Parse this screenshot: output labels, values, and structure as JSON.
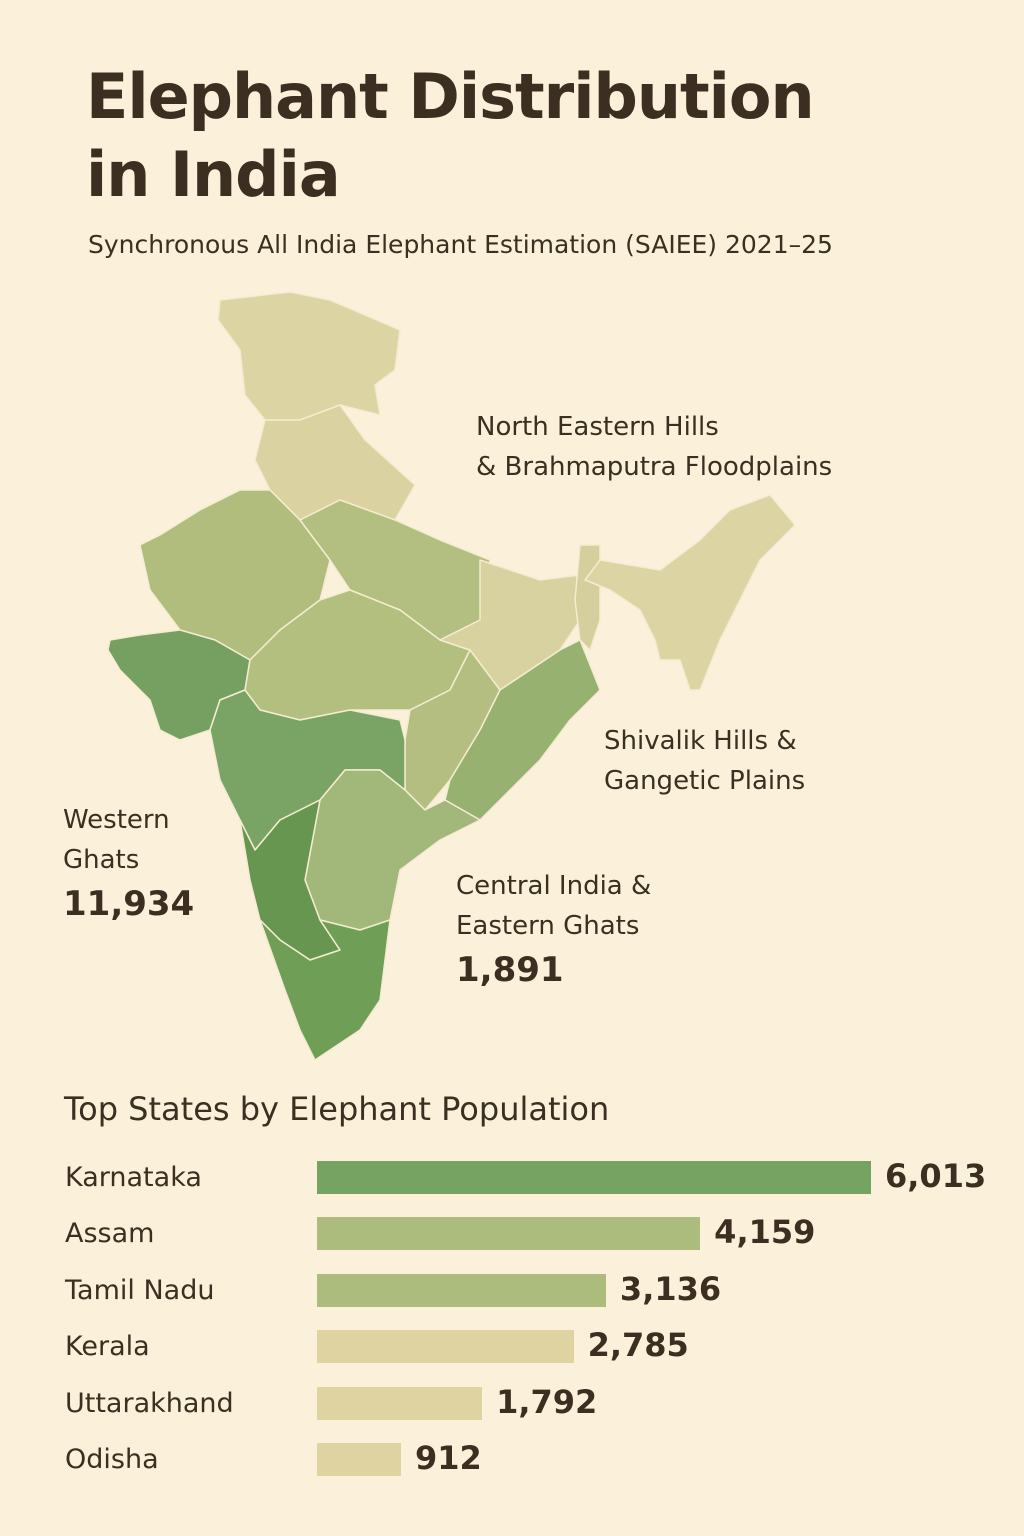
{
  "header": {
    "title_line1": "Elephant Distribution",
    "title_line2": "in India",
    "subtitle": "Synchronous All India Elephant Estimation (SAIEE) 2021–25"
  },
  "map": {
    "regions": [
      {
        "name_line1": "North Eastern Hills",
        "name_line2": "& Brahmaputra Floodplains"
      },
      {
        "name_line1": "Shivalik Hills &",
        "name_line2": "Gangetic Plains"
      },
      {
        "name_line1": "Western",
        "name_line2": "Ghats",
        "count": "11,934"
      },
      {
        "name_line1": "Central India &",
        "name_line2": "Eastern Ghats",
        "count": "1,891"
      }
    ]
  },
  "chart_data": {
    "type": "bar",
    "orientation": "horizontal",
    "title": "Top States by Elephant Population",
    "categories": [
      "Karnataka",
      "Assam",
      "Tamil Nadu",
      "Kerala",
      "Uttarakhand",
      "Odisha"
    ],
    "values": [
      6013,
      4159,
      3136,
      2785,
      1792,
      912
    ],
    "labels": [
      "6,013",
      "4,159",
      "3,136",
      "2,785",
      "1,792",
      "912"
    ],
    "colors": [
      "#76a262",
      "#abbc7c",
      "#abbc7c",
      "#dfd3a2",
      "#dfd3a2",
      "#dfd3a2"
    ],
    "xlim": [
      0,
      6013
    ],
    "grid": false
  }
}
